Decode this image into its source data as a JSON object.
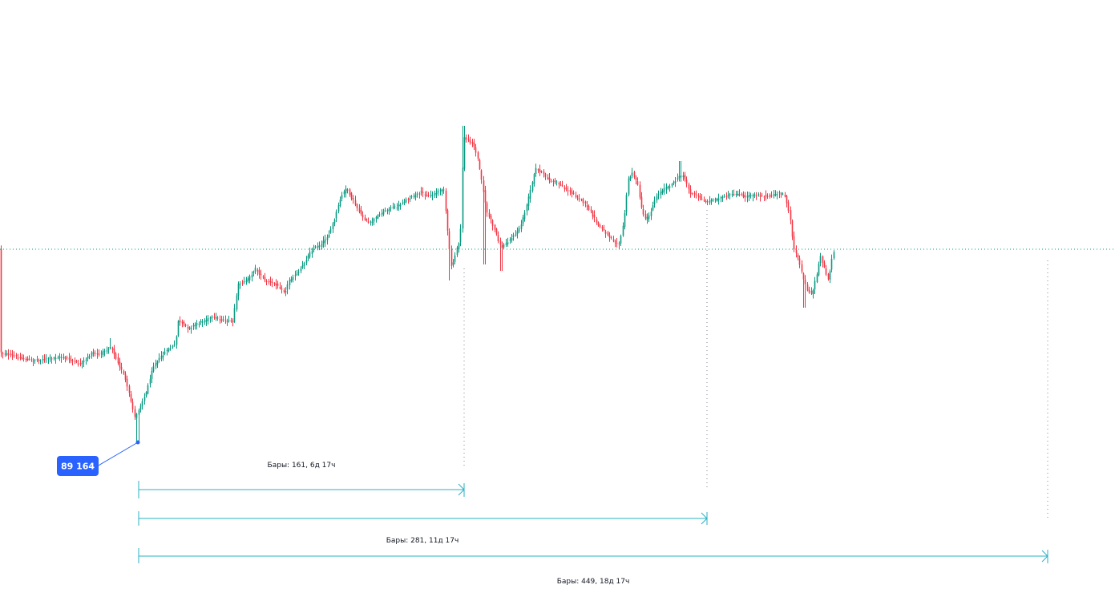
{
  "chart_data": {
    "type": "candlestick",
    "current_price_line": "dotted",
    "colors": {
      "up": "#089981",
      "down": "#f23645",
      "measure_line": "#2ab0c6",
      "price_line": "#089981",
      "badge": "#2962ff",
      "marker_line": "#9598a1"
    },
    "annotations": {
      "low_price_label": "89 164",
      "measurements": [
        {
          "label": "Бары: 161, 6д 17ч",
          "bars": 161
        },
        {
          "label": "Бары: 281, 11д 17ч",
          "bars": 281
        },
        {
          "label": "Бары: 449, 18д 17ч",
          "bars": 449
        }
      ]
    },
    "grid": false,
    "legend": "none"
  }
}
